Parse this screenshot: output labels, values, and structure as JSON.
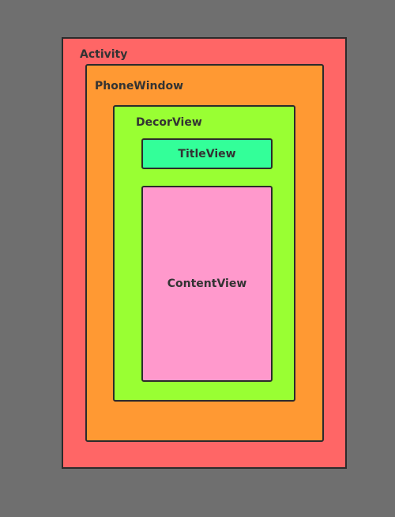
{
  "colors": {
    "background": "#6f6f6f",
    "activity": "#ff6666",
    "phonewindow": "#ff9933",
    "decorview": "#99ff33",
    "titleview": "#33ff99",
    "contentview": "#ff99cc"
  },
  "layers": {
    "activity": "Activity",
    "phonewindow": "PhoneWindow",
    "decorview": "DecorView",
    "titleview": "TitleView",
    "contentview": "ContentView"
  }
}
